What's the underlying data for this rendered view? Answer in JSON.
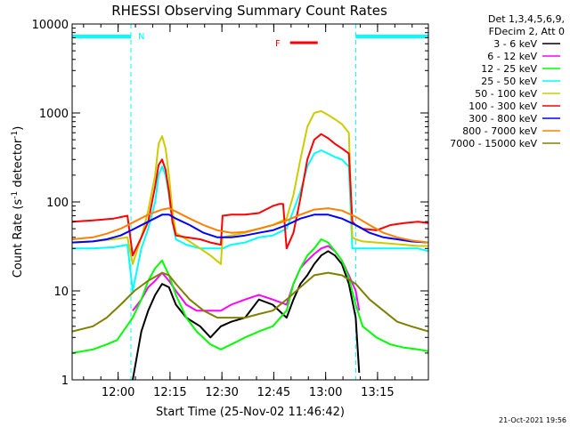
{
  "chart_data": {
    "type": "line",
    "title": "RHESSI Observing Summary Count Rates",
    "xlabel": "Start Time (25-Nov-02 11:46:42)",
    "ylabel": "Count Rate (s^-1 detector^-1)",
    "ylabel_main": "Count Rate (s",
    "ylabel_sup1": "-1",
    "ylabel_mid": " detector",
    "ylabel_sup2": "-1",
    "ylabel_end": ")",
    "y_scale": "log",
    "ylim": [
      1,
      10000
    ],
    "xlim_minutes": [
      0,
      103
    ],
    "x_ticks": [
      {
        "label": "12:00",
        "minute": 13.3
      },
      {
        "label": "12:15",
        "minute": 28.3
      },
      {
        "label": "12:30",
        "minute": 43.3
      },
      {
        "label": "12:45",
        "minute": 58.3
      },
      {
        "label": "13:00",
        "minute": 73.3
      },
      {
        "label": "13:15",
        "minute": 88.3
      }
    ],
    "y_ticks": [
      {
        "label": "1",
        "value": 1
      },
      {
        "label": "10",
        "value": 10
      },
      {
        "label": "100",
        "value": 100
      },
      {
        "label": "1000",
        "value": 1000
      },
      {
        "label": "10000",
        "value": 10000
      }
    ],
    "legend": {
      "placement": "right",
      "header_lines": [
        "Det 1,3,4,5,6,9,",
        "FDecim 2, Att 0"
      ],
      "entries": [
        {
          "label": "3 - 6 keV",
          "color": "#000000"
        },
        {
          "label": "6 - 12 keV",
          "color": "#ff00ff"
        },
        {
          "label": "12 - 25 keV",
          "color": "#00ff00"
        },
        {
          "label": "25 - 50 keV",
          "color": "#00ffff"
        },
        {
          "label": "50 - 100 keV",
          "color": "#cccc00"
        },
        {
          "label": "100 - 300 keV",
          "color": "#ff0000"
        },
        {
          "label": "300 - 800 keV",
          "color": "#0000ff"
        },
        {
          "label": "800 - 7000 keV",
          "color": "#ff8000"
        },
        {
          "label": "7000 - 15000 keV",
          "color": "#808000"
        }
      ]
    },
    "annotations": {
      "night_label": "N",
      "night_color": "#00ffff",
      "night_intervals_minutes": [
        [
          0,
          17
        ],
        [
          82,
          103
        ]
      ],
      "flare_label": "F",
      "flare_color": "#ff0000",
      "flare_interval_minutes": [
        63,
        71
      ]
    },
    "footer_date": "21-Oct-2021 19:56",
    "series": [
      {
        "name": "3 - 6 keV",
        "color": "#000000",
        "x": [
          17.5,
          20,
          22,
          24,
          26,
          28,
          30,
          33,
          37,
          40,
          43,
          46,
          50,
          54,
          58,
          62,
          64,
          66,
          68,
          70,
          72,
          74,
          76,
          78,
          80,
          82,
          83
        ],
        "y": [
          1,
          3.5,
          6,
          9,
          12,
          11,
          7,
          5,
          4,
          3,
          4,
          4.5,
          5,
          8,
          7,
          5,
          8,
          12,
          15,
          20,
          25,
          28,
          25,
          20,
          12,
          5,
          1.2
        ]
      },
      {
        "name": "6 - 12 keV",
        "color": "#ff00ff",
        "x": [
          17.5,
          20,
          22,
          24,
          26,
          28,
          30,
          33,
          36,
          40,
          43,
          46,
          50,
          54,
          58,
          62,
          64,
          66,
          68,
          70,
          72,
          74,
          76,
          78,
          80,
          82,
          83
        ],
        "y": [
          6,
          8,
          11,
          13,
          16,
          13,
          10,
          7,
          6,
          6,
          6,
          7,
          8,
          9,
          8,
          7,
          12,
          18,
          22,
          26,
          30,
          32,
          28,
          22,
          15,
          10,
          6
        ]
      },
      {
        "name": "12 - 25 keV",
        "color": "#00ff00",
        "x": [
          0,
          6,
          10,
          13,
          17.5,
          20,
          22,
          24,
          26,
          28,
          30,
          33,
          36,
          40,
          43,
          46,
          50,
          54,
          58,
          62,
          64,
          66,
          68,
          70,
          72,
          74,
          76,
          78,
          80,
          82,
          84,
          88,
          92,
          96,
          100,
          103
        ],
        "y": [
          2,
          2.2,
          2.5,
          2.8,
          5,
          8,
          13,
          18,
          22,
          15,
          9,
          5,
          3.5,
          2.5,
          2.2,
          2.5,
          3,
          3.5,
          4,
          6,
          12,
          18,
          25,
          30,
          38,
          35,
          28,
          22,
          14,
          7,
          4,
          3,
          2.5,
          2.3,
          2.2,
          2.1
        ]
      },
      {
        "name": "25 - 50 keV",
        "color": "#00ffff",
        "x": [
          0,
          6,
          12,
          16,
          17.5,
          20,
          22,
          24,
          25,
          26,
          27,
          28,
          29,
          30,
          33,
          37,
          40,
          43,
          43.5,
          46,
          50,
          54,
          58,
          62,
          64,
          66,
          68,
          70,
          72,
          74,
          76,
          78,
          80,
          81,
          82,
          83,
          84,
          88,
          92,
          96,
          100,
          103
        ],
        "y": [
          30,
          30,
          31,
          33,
          10,
          30,
          50,
          100,
          200,
          250,
          200,
          120,
          60,
          38,
          33,
          30,
          30,
          30,
          30,
          33,
          35,
          40,
          42,
          50,
          80,
          130,
          250,
          350,
          380,
          350,
          320,
          300,
          250,
          30,
          30,
          30,
          30,
          30,
          30,
          30,
          30,
          28
        ]
      },
      {
        "name": "50 - 100 keV",
        "color": "#cccc00",
        "x": [
          0,
          6,
          12,
          16,
          17.5,
          20,
          22,
          24,
          25,
          26,
          27,
          28,
          29,
          30,
          33,
          37,
          40,
          43,
          43.5,
          46,
          50,
          54,
          58,
          62,
          64,
          66,
          68,
          70,
          72,
          74,
          76,
          78,
          80,
          81,
          82,
          84,
          88,
          92,
          96,
          100,
          103
        ],
        "y": [
          35,
          36,
          38,
          40,
          20,
          40,
          80,
          200,
          450,
          550,
          400,
          200,
          80,
          45,
          38,
          30,
          25,
          20,
          40,
          42,
          45,
          50,
          55,
          65,
          120,
          300,
          700,
          1000,
          1050,
          950,
          850,
          750,
          600,
          40,
          38,
          36,
          35,
          34,
          33,
          32,
          32
        ]
      },
      {
        "name": "100 - 300 keV",
        "color": "#ff0000",
        "x": [
          0,
          6,
          12,
          16,
          17.5,
          20,
          22,
          24,
          25,
          26,
          27,
          28,
          29,
          30,
          33,
          37,
          40,
          43,
          43.5,
          46,
          50,
          54,
          58,
          60,
          61,
          62,
          64,
          66,
          68,
          70,
          72,
          74,
          76,
          78,
          80,
          81,
          82,
          84,
          88,
          92,
          96,
          100,
          103
        ],
        "y": [
          60,
          62,
          65,
          70,
          25,
          40,
          60,
          150,
          260,
          300,
          230,
          130,
          60,
          42,
          40,
          38,
          35,
          33,
          70,
          72,
          72,
          75,
          90,
          95,
          95,
          30,
          45,
          110,
          300,
          500,
          580,
          520,
          450,
          400,
          350,
          60,
          55,
          50,
          48,
          55,
          58,
          60,
          58
        ]
      },
      {
        "name": "300 - 800 keV",
        "color": "#0000ff",
        "x": [
          0,
          6,
          10,
          14,
          18,
          22,
          26,
          28,
          30,
          34,
          38,
          42,
          46,
          50,
          54,
          58,
          62,
          66,
          70,
          74,
          78,
          82,
          86,
          90,
          94,
          98,
          103
        ],
        "y": [
          35,
          36,
          38,
          42,
          50,
          60,
          72,
          72,
          65,
          55,
          45,
          40,
          40,
          42,
          45,
          48,
          55,
          65,
          72,
          72,
          65,
          55,
          45,
          40,
          38,
          36,
          35
        ]
      },
      {
        "name": "800 - 7000 keV",
        "color": "#ff8000",
        "x": [
          0,
          6,
          10,
          14,
          18,
          22,
          26,
          28,
          30,
          34,
          38,
          42,
          46,
          50,
          54,
          58,
          62,
          66,
          70,
          74,
          78,
          82,
          86,
          90,
          94,
          98,
          103
        ],
        "y": [
          38,
          40,
          44,
          50,
          60,
          72,
          82,
          85,
          78,
          65,
          55,
          48,
          45,
          46,
          50,
          55,
          62,
          72,
          82,
          85,
          80,
          68,
          55,
          45,
          40,
          37,
          35
        ]
      },
      {
        "name": "7000 - 15000 keV",
        "color": "#808000",
        "x": [
          0,
          6,
          10,
          14,
          18,
          22,
          26,
          28,
          30,
          34,
          38,
          42,
          46,
          50,
          54,
          58,
          62,
          66,
          70,
          74,
          78,
          82,
          86,
          90,
          94,
          98,
          103
        ],
        "y": [
          3.5,
          4,
          5,
          7,
          10,
          13,
          16,
          15,
          12,
          8,
          6,
          5,
          5,
          5,
          5.5,
          6,
          8,
          11,
          15,
          16,
          15,
          12,
          8,
          6,
          4.5,
          4,
          3.5
        ]
      }
    ]
  }
}
